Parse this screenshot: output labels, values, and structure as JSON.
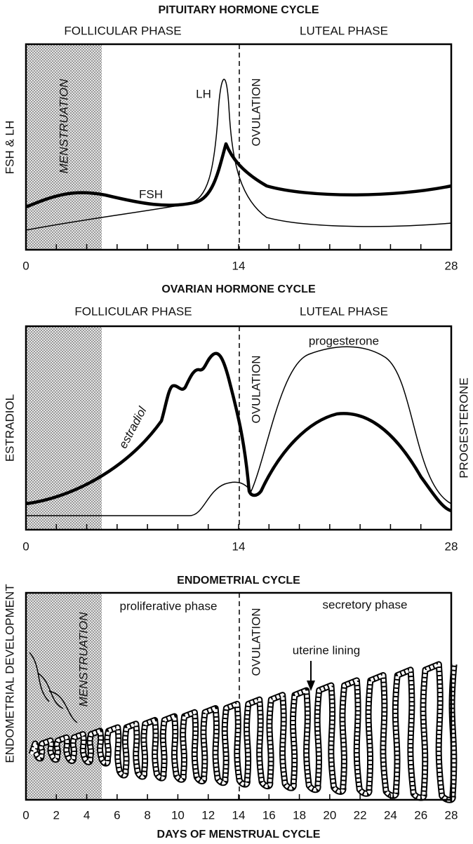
{
  "panels": [
    {
      "title": "PITUITARY HORMONE CYCLE",
      "phases": [
        "FOLLICULAR PHASE",
        "LUTEAL PHASE"
      ],
      "y_label": "FSH & LH",
      "menstruation": "MENSTRUATION",
      "ovulation": "OVULATION",
      "curve_labels": [
        "LH",
        "FSH"
      ],
      "x_ticks": [
        0,
        14,
        28
      ]
    },
    {
      "title": "OVARIAN HORMONE CYCLE",
      "phases": [
        "FOLLICULAR PHASE",
        "LUTEAL PHASE"
      ],
      "y_label": "ESTRADIOL",
      "y2_label": "PROGESTERONE",
      "ovulation": "OVULATION",
      "curve_labels": [
        "estradiol",
        "progesterone"
      ],
      "x_ticks": [
        0,
        14,
        28
      ]
    },
    {
      "title": "ENDOMETRIAL CYCLE",
      "phases": [
        "proliferative phase",
        "secretory phase"
      ],
      "y_label": "ENDOMETRIAL DEVELOPMENT",
      "menstruation": "MENSTRUATION",
      "ovulation": "OVULATION",
      "annotation": "uterine lining",
      "x_ticks": [
        0,
        2,
        4,
        6,
        8,
        10,
        12,
        14,
        16,
        18,
        20,
        22,
        24,
        26,
        28
      ],
      "x_label": "DAYS OF MENSTRUAL CYCLE"
    }
  ]
}
